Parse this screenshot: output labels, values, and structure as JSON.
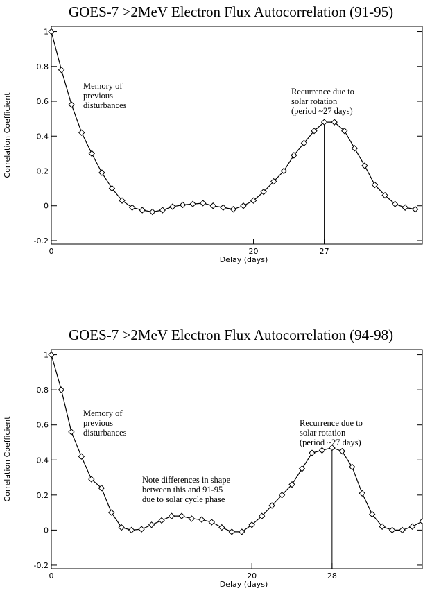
{
  "chart_data": [
    {
      "type": "line",
      "title": "GOES-7 >2MeV Electron Flux Autocorrelation (91-95)",
      "xlabel": "Delay (days)",
      "ylabel": "Correlation Coefficient",
      "x": [
        0,
        1,
        2,
        3,
        4,
        5,
        6,
        7,
        8,
        9,
        10,
        11,
        12,
        13,
        14,
        15,
        16,
        17,
        18,
        19,
        20,
        21,
        22,
        23,
        24,
        25,
        26,
        27,
        28,
        29,
        30,
        31,
        32,
        33,
        34,
        35,
        36
      ],
      "series": [
        {
          "color": "#000000",
          "values": [
            1.0,
            0.78,
            0.58,
            0.42,
            0.3,
            0.19,
            0.1,
            0.03,
            -0.01,
            -0.025,
            -0.035,
            -0.025,
            -0.005,
            0.005,
            0.01,
            0.015,
            0.0,
            -0.01,
            -0.02,
            0.0,
            0.03,
            0.08,
            0.14,
            0.2,
            0.29,
            0.36,
            0.43,
            0.48,
            0.48,
            0.43,
            0.33,
            0.23,
            0.12,
            0.06,
            0.01,
            -0.01,
            -0.02
          ]
        }
      ],
      "xlim": [
        0,
        36.7
      ],
      "ylim": [
        -0.22,
        1.03
      ],
      "xticks": [
        0,
        20,
        27
      ],
      "yticks": [
        -0.2,
        0.0,
        0.2,
        0.4,
        0.6,
        0.8,
        1.0
      ],
      "marker_line_x": 27,
      "annotations": [
        [
          "Memory of",
          "previous",
          "disturbances"
        ],
        [
          "Recurrence due to",
          "solar rotation",
          "(period ~27 days)"
        ]
      ]
    },
    {
      "type": "line",
      "title": "GOES-7 >2MeV Electron Flux Autocorrelation (94-98)",
      "xlabel": "Delay (days)",
      "ylabel": "Correlation Coefficient",
      "x": [
        0,
        1,
        2,
        3,
        4,
        5,
        6,
        7,
        8,
        9,
        10,
        11,
        12,
        13,
        14,
        15,
        16,
        17,
        18,
        19,
        20,
        21,
        22,
        23,
        24,
        25,
        26,
        27,
        28,
        29,
        30,
        31,
        32,
        33,
        34,
        35,
        36,
        37
      ],
      "series": [
        {
          "color": "#000000",
          "values": [
            1.0,
            0.8,
            0.56,
            0.42,
            0.29,
            0.24,
            0.1,
            0.015,
            0.0,
            0.005,
            0.03,
            0.055,
            0.08,
            0.08,
            0.065,
            0.06,
            0.045,
            0.015,
            -0.01,
            -0.01,
            0.03,
            0.08,
            0.14,
            0.2,
            0.26,
            0.35,
            0.44,
            0.455,
            0.47,
            0.45,
            0.36,
            0.21,
            0.09,
            0.02,
            0.0,
            0.0,
            0.02,
            0.05
          ]
        }
      ],
      "xlim": [
        0,
        37
      ],
      "ylim": [
        -0.22,
        1.03
      ],
      "xticks": [
        0,
        20,
        28
      ],
      "yticks": [
        -0.2,
        0.0,
        0.2,
        0.4,
        0.6,
        0.8,
        1.0
      ],
      "marker_line_x": 28,
      "annotations": [
        [
          "Memory of",
          "previous",
          "disturbances"
        ],
        [
          "Note differences in shape",
          "between this and 91-95",
          "due to solar cycle phase"
        ],
        [
          "Recurrence due to",
          "solar rotation",
          "(period ~27 days)"
        ]
      ]
    }
  ]
}
